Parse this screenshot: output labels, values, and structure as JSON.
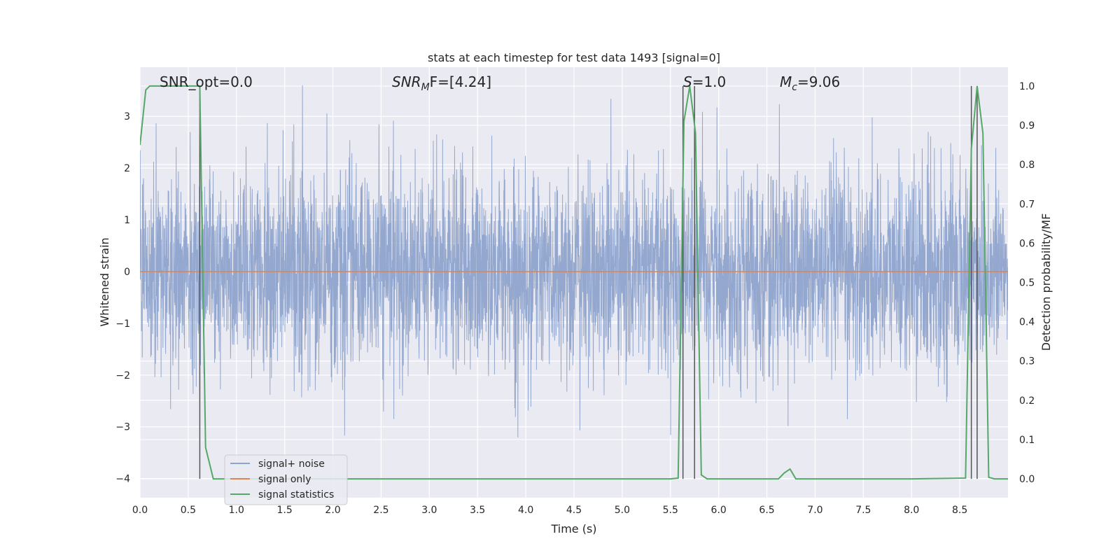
{
  "chart_data": {
    "type": "line",
    "title": "stats at each timestep for test data 1493 [signal=0]",
    "xlabel": "Time (s)",
    "ylabel": "Whitened strain",
    "ylabel_right": "Detection probability/MF",
    "xlim": [
      0.0,
      9.0
    ],
    "ylim": [
      -4.37,
      3.95
    ],
    "ylim_right": [
      -0.048,
      1.048
    ],
    "x_ticks": [
      "0.0",
      "0.5",
      "1.0",
      "1.5",
      "2.0",
      "2.5",
      "3.0",
      "3.5",
      "4.0",
      "4.5",
      "5.0",
      "5.5",
      "6.0",
      "6.5",
      "7.0",
      "7.5",
      "8.0",
      "8.5"
    ],
    "y_ticks": [
      "3",
      "2",
      "1",
      "0",
      "−1",
      "−2",
      "−3",
      "−4"
    ],
    "y_ticks_right": [
      "1.0",
      "0.9",
      "0.8",
      "0.7",
      "0.6",
      "0.5",
      "0.4",
      "0.3",
      "0.2",
      "0.1",
      "0.0"
    ],
    "grid": true,
    "legend_position": "lower-left",
    "annotations": {
      "snr_opt": "SNR_opt=0.0",
      "snr_mf_main": "SNR",
      "snr_mf_sub": "M",
      "snr_mf_rest": "F=[4.24]",
      "s_main": "S",
      "s_rest": "=1.0",
      "mc_main": "M",
      "mc_sub": "c",
      "mc_rest": "=9.06"
    },
    "series": [
      {
        "name": "signal+ noise",
        "color": "#8fa4cc",
        "description_values": "whitened noise, |y| mostly under 2, peaks near 3.6 and -3.6",
        "x_range": [
          0.0,
          9.0
        ],
        "y_extent": [
          -3.6,
          3.6
        ]
      },
      {
        "name": "signal only",
        "color": "#dd8452",
        "x": [
          0.0,
          9.0
        ],
        "y": [
          0.0,
          0.0
        ]
      },
      {
        "name": "signal statistics",
        "color": "#55a868",
        "axis": "right",
        "x": [
          0.0,
          0.06,
          0.1,
          0.2,
          0.3,
          0.4,
          0.5,
          0.6,
          0.62,
          0.68,
          0.76,
          0.85,
          1.0,
          2.0,
          3.0,
          4.0,
          5.0,
          5.5,
          5.58,
          5.64,
          5.7,
          5.76,
          5.82,
          5.88,
          5.95,
          6.0,
          6.5,
          6.62,
          6.68,
          6.74,
          6.8,
          6.9,
          7.0,
          8.0,
          8.56,
          8.62,
          8.68,
          8.74,
          8.8,
          8.86,
          8.94,
          9.0
        ],
        "y": [
          0.85,
          0.99,
          1.0,
          1.0,
          1.0,
          1.0,
          1.0,
          1.0,
          1.0,
          0.08,
          0.0,
          0.0,
          0.0,
          0.0,
          0.0,
          0.0,
          0.0,
          0.0,
          0.002,
          0.91,
          1.0,
          0.88,
          0.01,
          0.0,
          0.0,
          0.0,
          0.0,
          0.0,
          0.015,
          0.025,
          0.0,
          0.0,
          0.0,
          0.0,
          0.002,
          0.84,
          1.0,
          0.88,
          0.004,
          0.0,
          0.0,
          0.0
        ]
      }
    ],
    "vertical_markers": [
      {
        "name": "marker-1",
        "x": 0.62,
        "y_top": 1.0,
        "y_bottom": 0.0
      },
      {
        "name": "marker-2",
        "x": 5.63,
        "y_top": 1.0,
        "y_bottom": 0.0
      },
      {
        "name": "marker-3",
        "x": 5.75,
        "y_top": 1.0,
        "y_bottom": 0.0
      },
      {
        "name": "marker-4",
        "x": 8.62,
        "y_top": 1.0,
        "y_bottom": 0.0
      },
      {
        "name": "marker-5",
        "x": 8.68,
        "y_top": 1.0,
        "y_bottom": 0.0
      }
    ]
  },
  "colors": {
    "background": "#ffffff",
    "plot_background": "#eaeaf2",
    "grid": "#ffffff",
    "text": "#262626",
    "marker": "#555555"
  }
}
